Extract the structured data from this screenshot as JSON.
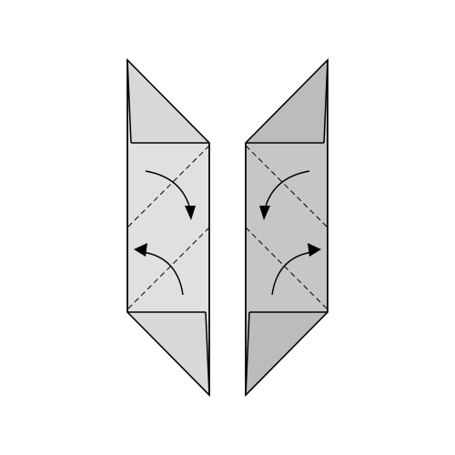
{
  "diagram": {
    "pieces": [
      {
        "id": "left-piece",
        "fill": "#e0e0e0"
      },
      {
        "id": "right-piece",
        "fill": "#c6c6c6"
      }
    ],
    "colors": {
      "line": "#000000",
      "background": "#ffffff"
    },
    "fold_lines": "dashed",
    "arrows": [
      {
        "piece": "left-piece",
        "name": "fold-arrow-down"
      },
      {
        "piece": "left-piece",
        "name": "fold-arrow-up"
      },
      {
        "piece": "right-piece",
        "name": "fold-arrow-down"
      },
      {
        "piece": "right-piece",
        "name": "fold-arrow-up"
      }
    ]
  }
}
